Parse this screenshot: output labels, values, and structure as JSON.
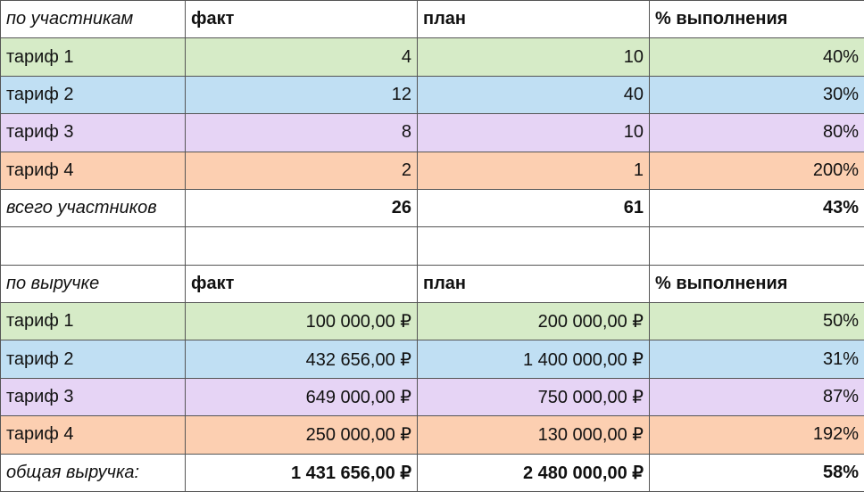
{
  "sections": [
    {
      "header": [
        "по участникам",
        "факт",
        "план",
        "% выполнения"
      ],
      "rows": [
        [
          "тариф 1",
          "4",
          "10",
          "40%"
        ],
        [
          "тариф 2",
          "12",
          "40",
          "30%"
        ],
        [
          "тариф 3",
          "8",
          "10",
          "80%"
        ],
        [
          "тариф 4",
          "2",
          "1",
          "200%"
        ]
      ],
      "total": [
        "всего участников",
        "26",
        "61",
        "43%"
      ]
    },
    {
      "header": [
        "по выручке",
        "факт",
        "план",
        "% выполнения"
      ],
      "rows": [
        [
          "тариф 1",
          "100 000,00 ₽",
          "200 000,00 ₽",
          "50%"
        ],
        [
          "тариф 2",
          "432 656,00 ₽",
          "1 400 000,00 ₽",
          "31%"
        ],
        [
          "тариф 3",
          "649 000,00 ₽",
          "750 000,00 ₽",
          "87%"
        ],
        [
          "тариф 4",
          "250 000,00 ₽",
          "130 000,00 ₽",
          "192%"
        ]
      ],
      "total": [
        "общая выручка:",
        "1 431 656,00 ₽",
        "2 480 000,00 ₽",
        "58%"
      ]
    }
  ]
}
